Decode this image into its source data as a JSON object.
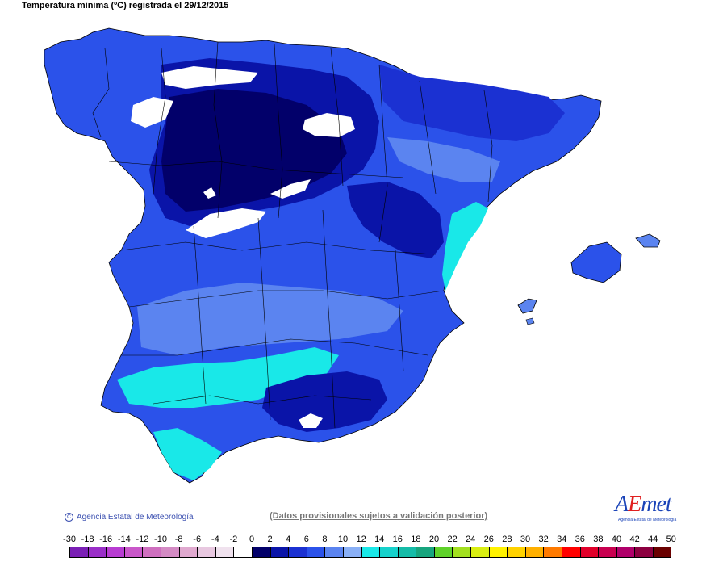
{
  "title": "Temperatura mínima (ºC) registrada el 29/12/2015",
  "footer": {
    "copyright": "Agencia Estatal de Meteorología",
    "notice": "(Datos provisionales sujetos a validación posterior)"
  },
  "logo": {
    "brand_first": "A",
    "brand_accent": "E",
    "brand_rest": "met",
    "subtitle": "Agencia Estatal de Meteorología"
  },
  "legend": {
    "labels": [
      "-30",
      "-18",
      "-16",
      "-14",
      "-12",
      "-10",
      "-8",
      "-6",
      "-4",
      "-2",
      "0",
      "2",
      "4",
      "6",
      "8",
      "10",
      "12",
      "14",
      "16",
      "18",
      "20",
      "22",
      "24",
      "26",
      "28",
      "30",
      "32",
      "34",
      "36",
      "38",
      "40",
      "42",
      "44",
      "50"
    ],
    "colors": [
      "#7a1fb5",
      "#9a2fc8",
      "#b83cd2",
      "#c957c9",
      "#cf6fbf",
      "#d48bc4",
      "#e0a9cf",
      "#e8c8e0",
      "#f0e2ee",
      "#ffffff",
      "#02006a",
      "#0a14a8",
      "#1b31d2",
      "#2b52ea",
      "#5b84f0",
      "#8ab0f6",
      "#19e8e8",
      "#16d2cc",
      "#15bca8",
      "#17a57e",
      "#5fd22a",
      "#a3e020",
      "#d9ee12",
      "#fff200",
      "#ffd200",
      "#ffb000",
      "#ff7a00",
      "#ff0000",
      "#e0002a",
      "#c80050",
      "#b0006a",
      "#8c0040",
      "#6a0000"
    ]
  },
  "map_colors": {
    "sea": "#ffffff",
    "darkest": "#02006a",
    "dark": "#0a14a8",
    "mid": "#1b31d2",
    "light": "#2b52ea",
    "lighter": "#5b84f0",
    "pale": "#8ab0f6",
    "cyan": "#19e8e8",
    "snow": "#ffffff",
    "border": "#000000"
  }
}
